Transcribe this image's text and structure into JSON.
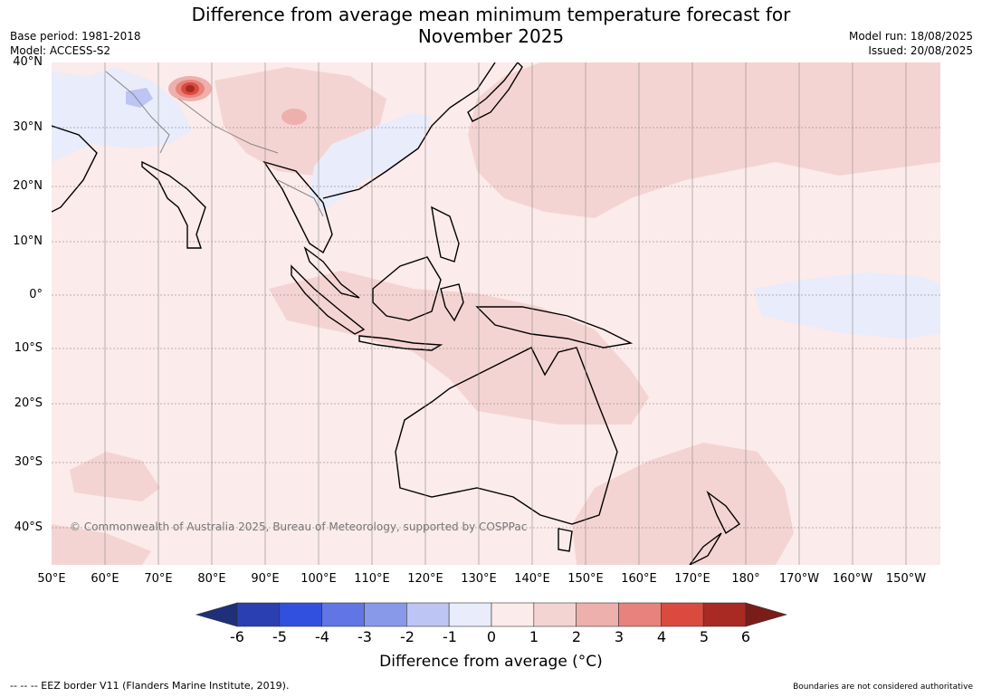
{
  "header": {
    "title_line1": "Difference from average mean minimum temperature forecast for",
    "title_line2": "November 2025",
    "base_period": "Base period: 1981-2018",
    "model": "Model: ACCESS-S2",
    "model_run": "Model run: 18/08/2025",
    "issued": "Issued: 20/08/2025"
  },
  "map": {
    "latitude_labels": [
      "40°N",
      "30°N",
      "20°N",
      "10°N",
      "0°",
      "10°S",
      "20°S",
      "30°S",
      "40°S"
    ],
    "longitude_labels": [
      "50°E",
      "60°E",
      "70°E",
      "80°E",
      "90°E",
      "100°E",
      "110°E",
      "120°E",
      "130°E",
      "140°E",
      "150°E",
      "160°E",
      "170°E",
      "180°",
      "170°W",
      "160°W",
      "150°W"
    ],
    "copyright": "© Commonwealth of Australia 2025, Bureau of Meteorology, supported by COSPPac"
  },
  "legend": {
    "ticks": [
      "-6",
      "-5",
      "-4",
      "-3",
      "-2",
      "-1",
      "0",
      "1",
      "2",
      "3",
      "4",
      "5",
      "6"
    ],
    "colors": [
      "#1f2f7a",
      "#2a3fb2",
      "#3150e0",
      "#6176e4",
      "#8899ea",
      "#bcc5f3",
      "#e8ecfb",
      "#fbebea",
      "#f4d4d2",
      "#eeb0ac",
      "#e8827c",
      "#da4a3f",
      "#a82a23",
      "#7a1d18"
    ],
    "label": "Difference from average (°C)"
  },
  "footer": {
    "eez_note": "--  --  -- EEZ border V11 (Flanders Marine Institute, 2019).",
    "disclaimer": "Boundaries are not considered authoritative"
  }
}
